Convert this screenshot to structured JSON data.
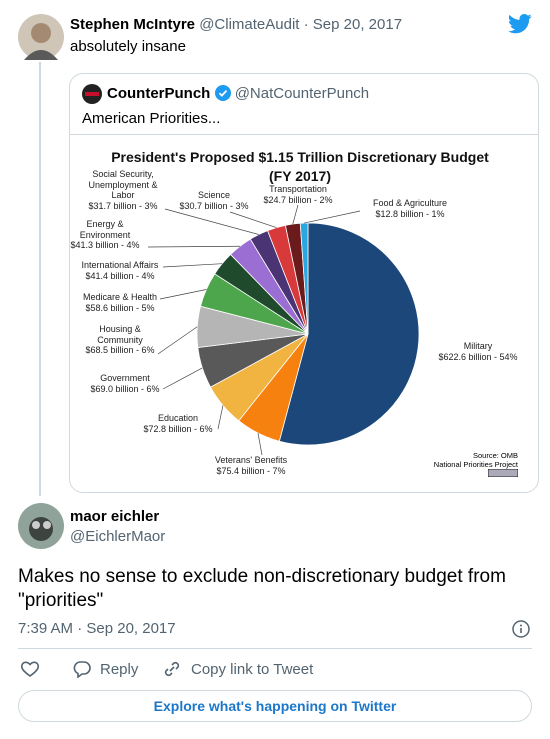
{
  "tweet": {
    "name": "Stephen McIntyre",
    "handle_date": "@ClimateAudit · Sep 20, 2017",
    "text": "absolutely insane"
  },
  "quoted": {
    "name": "CounterPunch",
    "handle": "@NatCounterPunch",
    "text": "American Priorities..."
  },
  "chart_data": {
    "type": "pie",
    "title": "President's Proposed $1.15 Trillion  Discretionary Budget (FY 2017)",
    "categories": [
      "Military",
      "Veterans' Benefits",
      "Education",
      "Government",
      "Housing & Community",
      "Medicare & Health",
      "International  Affairs",
      "Energy & Environment",
      "Social Security, Unemployment & Labor",
      "Science",
      "Transportation",
      "Food & Agriculture"
    ],
    "values": [
      622.6,
      75.4,
      72.8,
      69.0,
      68.5,
      58.6,
      41.4,
      41.3,
      31.7,
      30.7,
      24.7,
      12.8
    ],
    "value_labels": [
      "$622.6 billion - 54%",
      "$75.4 billion - 7%",
      "$72.8 billion - 6%",
      "$69.0 billion - 6%",
      "$68.5 billion - 6%",
      "$58.6 billion - 5%",
      "$41.4 billion - 4%",
      "$41.3 billion - 4%",
      "$31.7 billion - 3%",
      "$30.7 billion - 3%",
      "$24.7 billion - 2%",
      "$12.8 billion - 1%"
    ],
    "colors": [
      "#1c477a",
      "#f7810f",
      "#f1b441",
      "#595959",
      "#b5b5b5",
      "#4ea64c",
      "#1f4a2c",
      "#9a6ed2",
      "#4a3473",
      "#d8393b",
      "#6b1b1b",
      "#2aa7de"
    ],
    "source": "Source: OMB",
    "source_org": "National Priorities Project"
  },
  "reply": {
    "name": "maor eichler",
    "handle": "@EichlerMaor",
    "text": "Makes no sense to exclude non-discretionary budget from \"priorities\"",
    "time": "7:39 AM · Sep 20, 2017",
    "reply_action": "Reply",
    "copy_action": "Copy link to Tweet",
    "button": "Explore what's happening on Twitter"
  }
}
